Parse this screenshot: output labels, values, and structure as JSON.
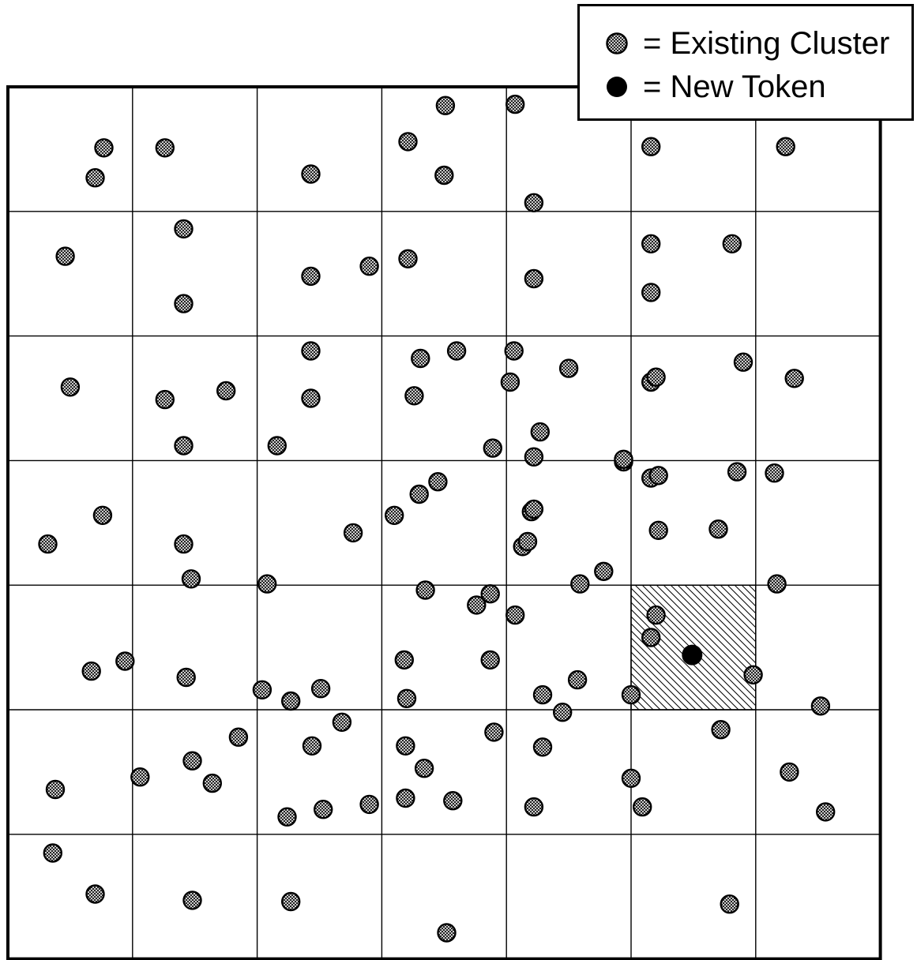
{
  "legend": {
    "existing_label": "= Existing Cluster",
    "new_label": "= New Token"
  },
  "grid": {
    "rows": 7,
    "cols": 7
  },
  "search_region": {
    "cell_span": [
      3,
      6,
      3,
      6
    ]
  },
  "target_cell": {
    "row": 4,
    "col": 5
  },
  "colors": {
    "line": "#000000",
    "marker_fill": "#ffffff",
    "hatch": "#000000",
    "new_token": "#000000"
  },
  "existing_clusters": [
    [
      0.7,
      0.73
    ],
    [
      0.77,
      0.49
    ],
    [
      1.26,
      0.49
    ],
    [
      1.41,
      1.14
    ],
    [
      1.41,
      1.74
    ],
    [
      0.46,
      1.36
    ],
    [
      0.5,
      2.41
    ],
    [
      1.26,
      2.51
    ],
    [
      1.75,
      2.44
    ],
    [
      2.43,
      0.7
    ],
    [
      2.43,
      1.52
    ],
    [
      2.43,
      2.12
    ],
    [
      2.43,
      2.5
    ],
    [
      3.21,
      0.44
    ],
    [
      3.51,
      0.15
    ],
    [
      3.5,
      0.71
    ],
    [
      4.07,
      0.14
    ],
    [
      4.22,
      0.93
    ],
    [
      2.9,
      1.44
    ],
    [
      3.21,
      1.38
    ],
    [
      4.22,
      1.54
    ],
    [
      3.31,
      2.18
    ],
    [
      3.6,
      2.12
    ],
    [
      3.26,
      2.48
    ],
    [
      4.06,
      2.12
    ],
    [
      4.03,
      2.37
    ],
    [
      4.5,
      2.26
    ],
    [
      5.16,
      0.48
    ],
    [
      6.24,
      0.48
    ],
    [
      5.16,
      1.26
    ],
    [
      5.81,
      1.26
    ],
    [
      5.16,
      1.65
    ],
    [
      5.16,
      2.37
    ],
    [
      5.2,
      2.33
    ],
    [
      5.9,
      2.21
    ],
    [
      6.31,
      2.34
    ],
    [
      4.27,
      2.77
    ],
    [
      4.22,
      2.97
    ],
    [
      0.76,
      3.44
    ],
    [
      0.32,
      3.67
    ],
    [
      1.41,
      2.88
    ],
    [
      1.41,
      3.67
    ],
    [
      1.47,
      3.95
    ],
    [
      2.16,
      2.88
    ],
    [
      2.77,
      3.58
    ],
    [
      2.08,
      3.99
    ],
    [
      3.1,
      3.44
    ],
    [
      3.3,
      3.27
    ],
    [
      3.45,
      3.17
    ],
    [
      3.89,
      2.9
    ],
    [
      4.2,
      3.41
    ],
    [
      4.22,
      3.39
    ],
    [
      4.13,
      3.69
    ],
    [
      4.17,
      3.65
    ],
    [
      4.94,
      3.01
    ],
    [
      4.94,
      2.99
    ],
    [
      5.16,
      3.14
    ],
    [
      5.22,
      3.12
    ],
    [
      5.85,
      3.09
    ],
    [
      6.15,
      3.1
    ],
    [
      5.22,
      3.56
    ],
    [
      5.7,
      3.55
    ],
    [
      0.67,
      4.69
    ],
    [
      0.94,
      4.61
    ],
    [
      1.43,
      4.74
    ],
    [
      2.04,
      4.84
    ],
    [
      2.27,
      4.93
    ],
    [
      2.51,
      4.83
    ],
    [
      3.18,
      4.6
    ],
    [
      3.35,
      4.04
    ],
    [
      3.76,
      4.16
    ],
    [
      3.87,
      4.07
    ],
    [
      3.87,
      4.6
    ],
    [
      3.2,
      4.91
    ],
    [
      4.07,
      4.24
    ],
    [
      4.59,
      3.99
    ],
    [
      4.78,
      3.89
    ],
    [
      6.17,
      3.99
    ],
    [
      5.2,
      4.24
    ],
    [
      5.16,
      4.42
    ],
    [
      5.98,
      4.72
    ],
    [
      6.52,
      4.97
    ],
    [
      4.29,
      4.88
    ],
    [
      4.57,
      4.76
    ],
    [
      4.45,
      5.02
    ],
    [
      5.0,
      4.88
    ],
    [
      0.38,
      5.64
    ],
    [
      1.06,
      5.54
    ],
    [
      1.48,
      5.41
    ],
    [
      1.64,
      5.59
    ],
    [
      1.85,
      5.22
    ],
    [
      2.68,
      5.1
    ],
    [
      2.44,
      5.29
    ],
    [
      2.53,
      5.8
    ],
    [
      2.24,
      5.86
    ],
    [
      2.9,
      5.76
    ],
    [
      3.19,
      5.29
    ],
    [
      3.34,
      5.47
    ],
    [
      3.19,
      5.71
    ],
    [
      3.57,
      5.73
    ],
    [
      3.9,
      5.18
    ],
    [
      4.22,
      5.78
    ],
    [
      4.29,
      5.3
    ],
    [
      5.0,
      5.55
    ],
    [
      5.09,
      5.78
    ],
    [
      5.72,
      5.16
    ],
    [
      6.27,
      5.5
    ],
    [
      6.56,
      5.82
    ],
    [
      0.36,
      6.15
    ],
    [
      0.7,
      6.48
    ],
    [
      1.48,
      6.53
    ],
    [
      2.27,
      6.54
    ],
    [
      3.52,
      6.79
    ],
    [
      5.79,
      6.56
    ]
  ],
  "new_token": [
    5.49,
    4.56
  ]
}
